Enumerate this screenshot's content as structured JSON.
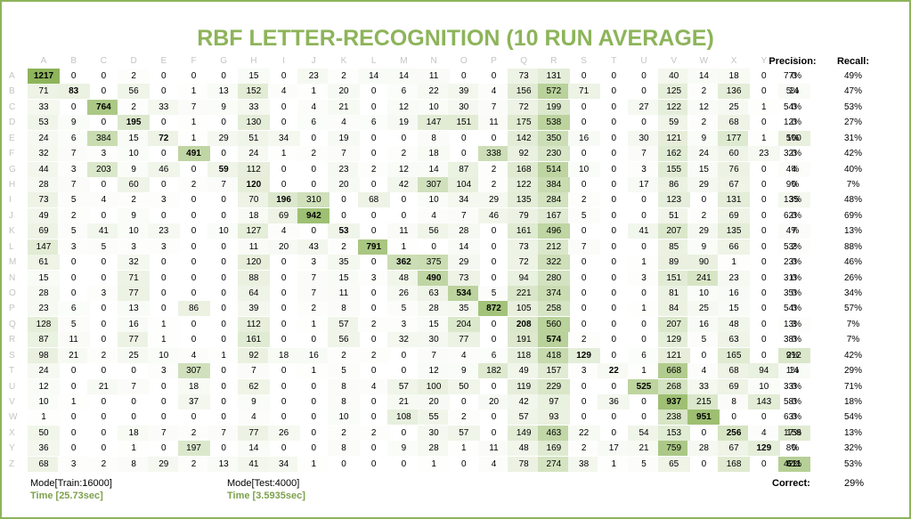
{
  "title": "RBF LETTER-RECOGNITION (10 RUN AVERAGE)",
  "headers": {
    "precision": "Precision:",
    "recall": "Recall:"
  },
  "footer": {
    "train_mode": "Mode[Train:16000]",
    "train_time": "Time [25.73sec]",
    "test_mode": "Mode[Test:4000]",
    "test_time": "Time [3.5935sec]",
    "correct_label": "Correct:",
    "correct_value": "29%"
  },
  "colors": {
    "accent": "#8db45a",
    "header_letters": "#c4c4c4"
  },
  "chart_data": {
    "type": "heatmap",
    "title": "RBF LETTER-RECOGNITION (10 RUN AVERAGE)",
    "labels": [
      "A",
      "B",
      "C",
      "D",
      "E",
      "F",
      "G",
      "H",
      "I",
      "J",
      "K",
      "L",
      "M",
      "N",
      "O",
      "P",
      "Q",
      "R",
      "S",
      "T",
      "U",
      "V",
      "W",
      "X",
      "Y",
      "Z"
    ],
    "matrix": [
      [
        1217,
        0,
        0,
        2,
        0,
        0,
        0,
        15,
        0,
        23,
        2,
        14,
        14,
        11,
        0,
        0,
        73,
        131,
        0,
        0,
        0,
        40,
        14,
        18,
        0,
        0
      ],
      [
        71,
        83,
        0,
        56,
        0,
        1,
        13,
        152,
        4,
        1,
        20,
        0,
        6,
        22,
        39,
        4,
        156,
        572,
        71,
        0,
        0,
        125,
        2,
        136,
        0,
        14
      ],
      [
        33,
        0,
        764,
        2,
        33,
        7,
        9,
        33,
        0,
        4,
        21,
        0,
        12,
        10,
        30,
        7,
        72,
        199,
        0,
        0,
        27,
        122,
        12,
        25,
        1,
        0
      ],
      [
        53,
        9,
        0,
        195,
        0,
        1,
        0,
        130,
        0,
        6,
        4,
        6,
        19,
        147,
        151,
        11,
        175,
        538,
        0,
        0,
        0,
        59,
        2,
        68,
        0,
        0
      ],
      [
        24,
        6,
        384,
        15,
        72,
        1,
        29,
        51,
        34,
        0,
        19,
        0,
        0,
        8,
        0,
        0,
        142,
        350,
        16,
        0,
        30,
        121,
        9,
        177,
        1,
        100
      ],
      [
        32,
        7,
        3,
        10,
        0,
        491,
        0,
        24,
        1,
        2,
        7,
        0,
        2,
        18,
        0,
        338,
        92,
        230,
        0,
        0,
        7,
        162,
        24,
        60,
        23,
        0
      ],
      [
        44,
        3,
        203,
        9,
        46,
        0,
        59,
        112,
        0,
        0,
        23,
        2,
        12,
        14,
        87,
        2,
        168,
        514,
        10,
        0,
        3,
        155,
        15,
        76,
        0,
        4
      ],
      [
        28,
        7,
        0,
        60,
        0,
        2,
        7,
        120,
        0,
        0,
        20,
        0,
        42,
        307,
        104,
        2,
        122,
        384,
        0,
        0,
        17,
        86,
        29,
        67,
        0,
        0
      ],
      [
        73,
        5,
        4,
        2,
        3,
        0,
        0,
        70,
        196,
        310,
        0,
        68,
        0,
        10,
        34,
        29,
        135,
        284,
        2,
        0,
        0,
        123,
        0,
        131,
        0,
        35
      ],
      [
        49,
        2,
        0,
        9,
        0,
        0,
        0,
        18,
        69,
        942,
        0,
        0,
        0,
        4,
        7,
        46,
        79,
        167,
        5,
        0,
        0,
        51,
        2,
        69,
        0,
        0
      ],
      [
        69,
        5,
        41,
        10,
        23,
        0,
        10,
        127,
        4,
        0,
        53,
        0,
        11,
        56,
        28,
        0,
        161,
        496,
        0,
        0,
        41,
        207,
        29,
        135,
        0,
        7
      ],
      [
        147,
        3,
        5,
        3,
        3,
        0,
        0,
        11,
        20,
        43,
        2,
        791,
        1,
        0,
        14,
        0,
        73,
        212,
        7,
        0,
        0,
        85,
        9,
        66,
        0,
        2
      ],
      [
        61,
        0,
        0,
        32,
        0,
        0,
        0,
        120,
        0,
        3,
        35,
        0,
        362,
        375,
        29,
        0,
        72,
        322,
        0,
        0,
        1,
        89,
        90,
        1,
        0,
        0
      ],
      [
        15,
        0,
        0,
        71,
        0,
        0,
        0,
        88,
        0,
        7,
        15,
        3,
        48,
        490,
        73,
        0,
        94,
        280,
        0,
        0,
        3,
        151,
        241,
        23,
        0,
        0
      ],
      [
        28,
        0,
        3,
        77,
        0,
        0,
        0,
        64,
        0,
        7,
        11,
        0,
        26,
        63,
        534,
        5,
        221,
        374,
        0,
        0,
        0,
        81,
        10,
        16,
        0,
        0
      ],
      [
        23,
        6,
        0,
        13,
        0,
        86,
        0,
        39,
        0,
        2,
        8,
        0,
        5,
        28,
        35,
        872,
        105,
        258,
        0,
        0,
        1,
        84,
        25,
        15,
        0,
        0
      ],
      [
        128,
        5,
        0,
        16,
        1,
        0,
        0,
        112,
        0,
        1,
        57,
        2,
        3,
        15,
        204,
        0,
        208,
        560,
        0,
        0,
        0,
        207,
        16,
        48,
        0,
        3
      ],
      [
        87,
        11,
        0,
        77,
        1,
        0,
        0,
        161,
        0,
        0,
        56,
        0,
        32,
        30,
        77,
        0,
        191,
        574,
        2,
        0,
        0,
        129,
        5,
        63,
        0,
        0
      ],
      [
        98,
        21,
        2,
        25,
        10,
        4,
        1,
        92,
        18,
        16,
        2,
        2,
        0,
        7,
        4,
        6,
        118,
        418,
        129,
        0,
        6,
        121,
        0,
        165,
        0,
        212
      ],
      [
        24,
        0,
        0,
        0,
        3,
        307,
        0,
        7,
        0,
        1,
        5,
        0,
        0,
        12,
        9,
        182,
        49,
        157,
        3,
        22,
        1,
        668,
        4,
        68,
        94,
        14
      ],
      [
        12,
        0,
        21,
        7,
        0,
        18,
        0,
        62,
        0,
        0,
        8,
        4,
        57,
        100,
        50,
        0,
        119,
        229,
        0,
        0,
        525,
        268,
        33,
        69,
        10,
        0
      ],
      [
        10,
        1,
        0,
        0,
        0,
        37,
        0,
        9,
        0,
        0,
        8,
        0,
        21,
        20,
        0,
        20,
        42,
        97,
        0,
        36,
        0,
        937,
        215,
        8,
        143,
        0
      ],
      [
        1,
        0,
        0,
        0,
        0,
        0,
        0,
        4,
        0,
        0,
        10,
        0,
        108,
        55,
        2,
        0,
        57,
        93,
        0,
        0,
        0,
        238,
        951,
        0,
        0,
        0
      ],
      [
        50,
        0,
        0,
        18,
        7,
        2,
        7,
        77,
        26,
        0,
        2,
        2,
        0,
        30,
        57,
        0,
        149,
        463,
        22,
        0,
        54,
        153,
        0,
        256,
        4,
        158
      ],
      [
        36,
        0,
        0,
        1,
        0,
        197,
        0,
        14,
        0,
        0,
        8,
        0,
        9,
        28,
        1,
        11,
        48,
        169,
        2,
        17,
        21,
        759,
        28,
        67,
        129,
        0
      ],
      [
        68,
        3,
        2,
        8,
        29,
        2,
        13,
        41,
        34,
        1,
        0,
        0,
        0,
        1,
        0,
        4,
        78,
        274,
        38,
        1,
        5,
        65,
        0,
        168,
        0,
        611
      ]
    ],
    "precision": [
      "77%",
      "5%",
      "54%",
      "12%",
      "5%",
      "32%",
      "4%",
      "9%",
      "13%",
      "62%",
      "4%",
      "53%",
      "23%",
      "31%",
      "35%",
      "54%",
      "13%",
      "38%",
      "9%",
      "1%",
      "33%",
      "58%",
      "63%",
      "17%",
      "8%",
      "42%"
    ],
    "recall": [
      "49%",
      "47%",
      "53%",
      "27%",
      "31%",
      "42%",
      "40%",
      "7%",
      "48%",
      "69%",
      "13%",
      "88%",
      "46%",
      "26%",
      "34%",
      "57%",
      "7%",
      "7%",
      "42%",
      "29%",
      "71%",
      "18%",
      "54%",
      "13%",
      "32%",
      "53%"
    ],
    "color_scale": {
      "min": 0,
      "max": 1217,
      "low": "#ffffff",
      "high": "#8db45a"
    }
  }
}
